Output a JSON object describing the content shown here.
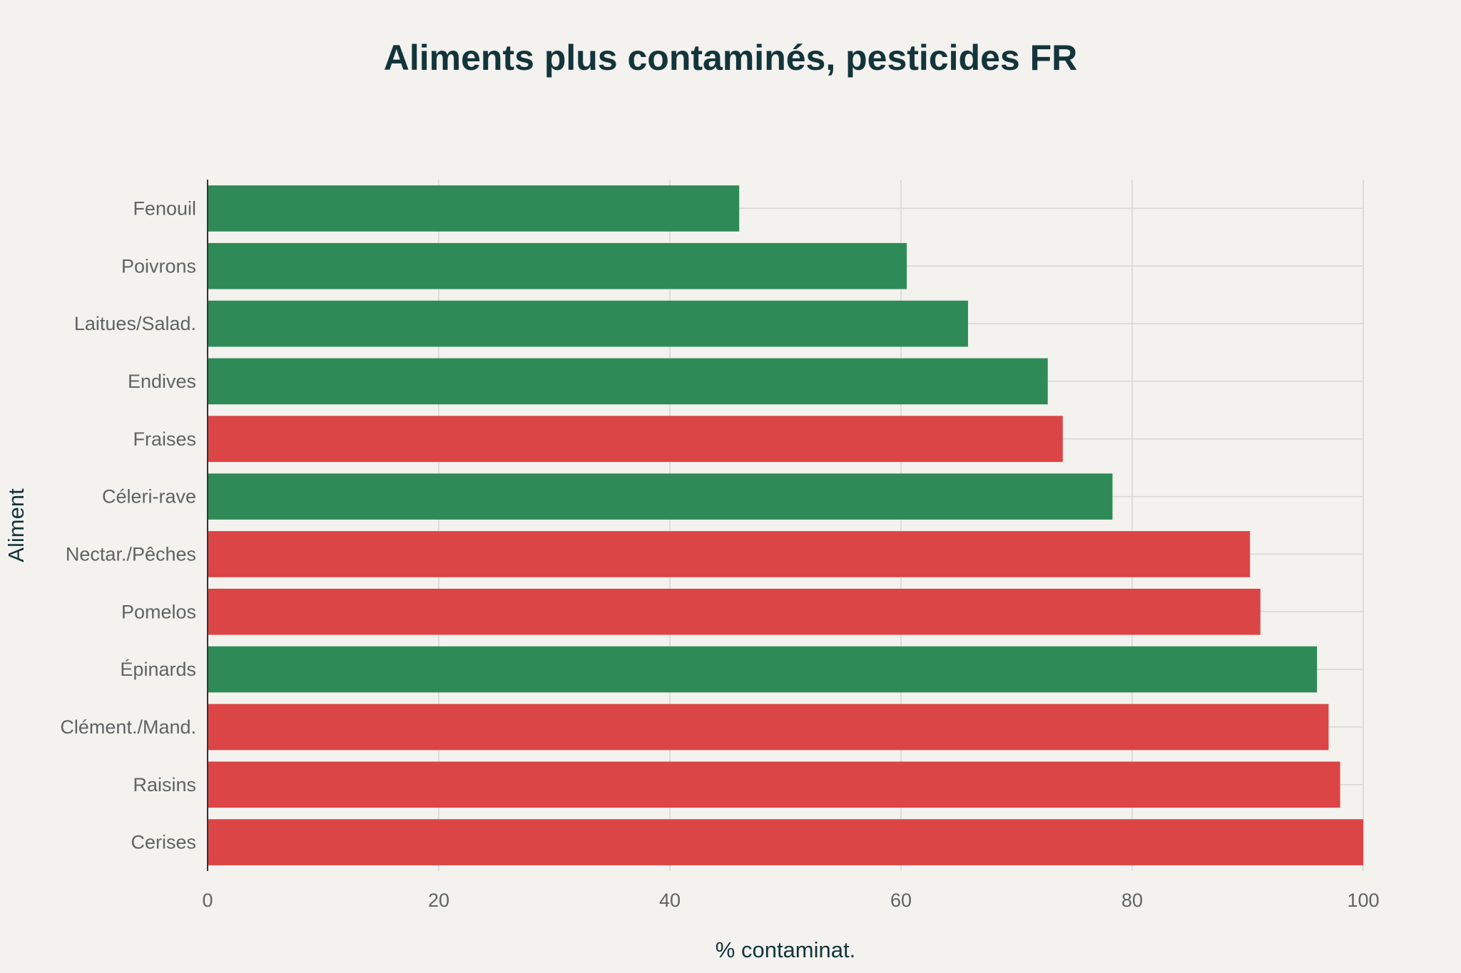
{
  "chart_data": {
    "type": "bar",
    "orientation": "horizontal",
    "title": "Aliments plus contaminés, pesticides FR",
    "xlabel": "% contaminat.",
    "ylabel": "Aliment",
    "xlim": [
      0,
      100
    ],
    "xticks": [
      0,
      20,
      40,
      60,
      80,
      100
    ],
    "grid": true,
    "categories": [
      "Fenouil",
      "Poivrons",
      "Laitues/Salad.",
      "Endives",
      "Fraises",
      "Céleri-rave",
      "Nectar./Pêches",
      "Pomelos",
      "Épinards",
      "Clément./Mand.",
      "Raisins",
      "Cerises"
    ],
    "values": [
      46,
      60.5,
      65.8,
      72.7,
      74,
      78.3,
      90.2,
      91.1,
      96,
      97,
      98,
      100
    ],
    "bar_colors": [
      "#2E8B57",
      "#2E8B57",
      "#2E8B57",
      "#2E8B57",
      "#DB4545",
      "#2E8B57",
      "#DB4545",
      "#DB4545",
      "#2E8B57",
      "#DB4545",
      "#DB4545",
      "#DB4545"
    ]
  }
}
